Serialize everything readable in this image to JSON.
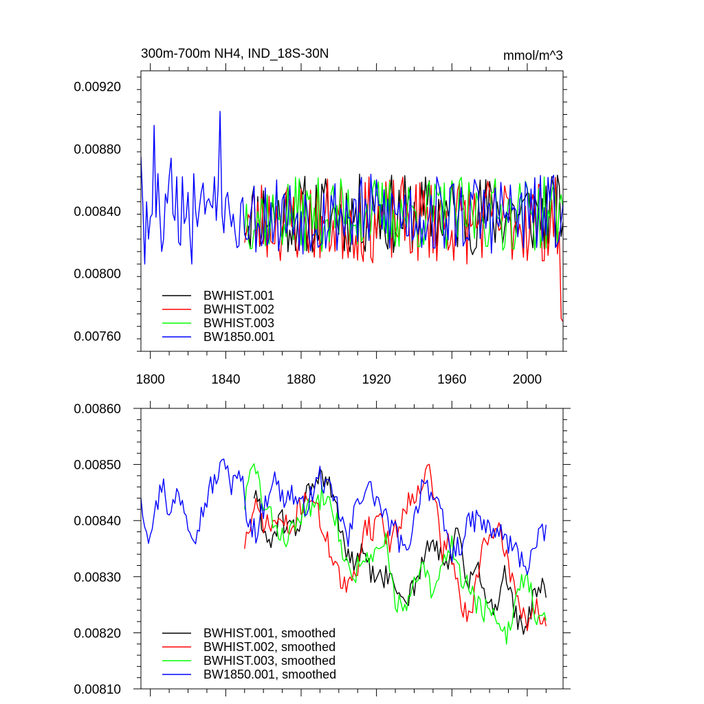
{
  "chart_data": [
    {
      "type": "line",
      "title": "300m-700m NH4, IND_18S-30N",
      "units_label": "mmol/m^3",
      "xlabel": "",
      "ylabel": "",
      "xlim": [
        1795,
        2019
      ],
      "ylim": [
        0.0075,
        0.0093
      ],
      "xticks": [
        1800,
        1840,
        1880,
        1920,
        1960,
        2000
      ],
      "xtick_labels": [
        "1800",
        "1840",
        "1880",
        "1920",
        "1960",
        "2000"
      ],
      "yticks": [
        0.0076,
        0.008,
        0.0084,
        0.0088,
        0.0092
      ],
      "ytick_labels": [
        "0.00760",
        "0.00800",
        "0.00840",
        "0.00880",
        "0.00920"
      ],
      "grid": false,
      "legend_position": "bottom-left",
      "series": [
        {
          "name": "BWHIST.001",
          "color": "#000000",
          "x_start": 1850,
          "x_step": 1,
          "synth_seed": 11,
          "synth_mean": 0.00838,
          "synth_amp": 0.00026
        },
        {
          "name": "BWHIST.002",
          "color": "#ff0000",
          "x_start": 1850,
          "x_step": 1,
          "synth_seed": 23,
          "synth_mean": 0.00834,
          "synth_amp": 0.00028,
          "end_values": [
            0.00771,
            0.00769
          ]
        },
        {
          "name": "BWHIST.003",
          "color": "#00ff00",
          "x_start": 1850,
          "x_step": 1,
          "synth_seed": 37,
          "synth_mean": 0.00838,
          "synth_amp": 0.00024
        },
        {
          "name": "BW1850.001",
          "color": "#0000ff",
          "x_start": 1795,
          "x_step": 1,
          "head_values": [
            0.00875,
            0.00845,
            0.00806,
            0.00846,
            0.00822,
            0.00836,
            0.00838,
            0.00895,
            0.00836,
            0.00864,
            0.00838,
            0.00814,
            0.00822,
            0.00851,
            0.00845,
            0.00862,
            0.00874,
            0.00838,
            0.00834,
            0.00862,
            0.0082,
            0.00818,
            0.00862,
            0.00832,
            0.00836,
            0.00852,
            0.00824,
            0.00806,
            0.00864,
            0.0084,
            0.0083,
            0.00842,
            0.00852,
            0.00858,
            0.00838,
            0.00846,
            0.00848,
            0.00844,
            0.00842,
            0.00862,
            0.00834,
            0.00856,
            0.00904,
            0.00838,
            0.00826,
            0.00848,
            0.00852,
            0.0084,
            0.0083,
            0.00838
          ],
          "synth_seed": 53,
          "synth_mean": 0.00838,
          "synth_amp": 0.00026,
          "end_values": [
            0.00822,
            0.00834,
            0.00845
          ]
        }
      ]
    },
    {
      "type": "line",
      "title": "",
      "xlabel": "",
      "ylabel": "",
      "xlim": [
        1795,
        2019
      ],
      "ylim": [
        0.0081,
        0.0086
      ],
      "xticks": [
        1800,
        1840,
        1880,
        1920,
        1960,
        2000
      ],
      "xtick_labels": [
        "",
        "",
        "",
        "",
        "",
        ""
      ],
      "yticks": [
        0.0081,
        0.0082,
        0.0083,
        0.0084,
        0.0085,
        0.0086
      ],
      "ytick_labels": [
        "0.00810",
        "0.00820",
        "0.00830",
        "0.00840",
        "0.00850",
        "0.00860"
      ],
      "grid": false,
      "legend_position": "bottom-left",
      "series": [
        {
          "name": "BWHIST.001, smoothed",
          "color": "#000000",
          "x_start": 1855,
          "x_step": 1,
          "anchors": [
            [
              1855,
              0.00845
            ],
            [
              1858,
              0.00842
            ],
            [
              1862,
              0.00836
            ],
            [
              1870,
              0.0084
            ],
            [
              1878,
              0.00838
            ],
            [
              1882,
              0.00844
            ],
            [
              1888,
              0.00848
            ],
            [
              1895,
              0.00846
            ],
            [
              1900,
              0.0084
            ],
            [
              1906,
              0.00832
            ],
            [
              1912,
              0.00834
            ],
            [
              1918,
              0.0083
            ],
            [
              1925,
              0.0083
            ],
            [
              1930,
              0.00828
            ],
            [
              1936,
              0.00826
            ],
            [
              1942,
              0.0083
            ],
            [
              1948,
              0.00836
            ],
            [
              1953,
              0.00834
            ],
            [
              1958,
              0.00832
            ],
            [
              1963,
              0.00838
            ],
            [
              1968,
              0.00828
            ],
            [
              1973,
              0.00832
            ],
            [
              1978,
              0.00826
            ],
            [
              1983,
              0.00824
            ],
            [
              1988,
              0.00832
            ],
            [
              1993,
              0.00824
            ],
            [
              1998,
              0.00819
            ],
            [
              2003,
              0.00826
            ],
            [
              2008,
              0.00828
            ],
            [
              2010,
              0.00826
            ]
          ],
          "synth_seed": 61,
          "synth_amp": 2.2e-05
        },
        {
          "name": "BWHIST.002, smoothed",
          "color": "#ff0000",
          "x_start": 1850,
          "x_step": 1,
          "anchors": [
            [
              1850,
              0.00836
            ],
            [
              1856,
              0.00842
            ],
            [
              1862,
              0.00839
            ],
            [
              1868,
              0.0084
            ],
            [
              1875,
              0.00838
            ],
            [
              1880,
              0.00843
            ],
            [
              1885,
              0.00845
            ],
            [
              1890,
              0.0084
            ],
            [
              1894,
              0.00836
            ],
            [
              1898,
              0.00833
            ],
            [
              1902,
              0.00828
            ],
            [
              1906,
              0.00828
            ],
            [
              1910,
              0.00832
            ],
            [
              1914,
              0.0084
            ],
            [
              1918,
              0.00838
            ],
            [
              1922,
              0.00842
            ],
            [
              1926,
              0.00836
            ],
            [
              1930,
              0.00838
            ],
            [
              1935,
              0.00842
            ],
            [
              1940,
              0.00845
            ],
            [
              1944,
              0.00847
            ],
            [
              1948,
              0.00849
            ],
            [
              1952,
              0.00842
            ],
            [
              1955,
              0.00834
            ],
            [
              1958,
              0.00836
            ],
            [
              1962,
              0.0083
            ],
            [
              1966,
              0.00824
            ],
            [
              1970,
              0.00822
            ],
            [
              1974,
              0.00832
            ],
            [
              1978,
              0.00838
            ],
            [
              1982,
              0.00836
            ],
            [
              1986,
              0.00838
            ],
            [
              1990,
              0.00832
            ],
            [
              1995,
              0.00826
            ],
            [
              2000,
              0.00822
            ],
            [
              2005,
              0.00825
            ],
            [
              2010,
              0.0082
            ]
          ],
          "synth_seed": 71,
          "synth_amp": 2.2e-05
        },
        {
          "name": "BWHIST.003, smoothed",
          "color": "#00ff00",
          "x_start": 1850,
          "x_step": 1,
          "anchors": [
            [
              1850,
              0.00843
            ],
            [
              1853,
              0.00848
            ],
            [
              1856,
              0.0085
            ],
            [
              1860,
              0.00842
            ],
            [
              1865,
              0.0084
            ],
            [
              1870,
              0.00837
            ],
            [
              1875,
              0.00838
            ],
            [
              1880,
              0.00841
            ],
            [
              1885,
              0.00842
            ],
            [
              1890,
              0.00844
            ],
            [
              1895,
              0.00846
            ],
            [
              1900,
              0.00838
            ],
            [
              1904,
              0.00832
            ],
            [
              1908,
              0.0083
            ],
            [
              1912,
              0.00834
            ],
            [
              1916,
              0.00832
            ],
            [
              1920,
              0.00834
            ],
            [
              1925,
              0.00836
            ],
            [
              1930,
              0.00826
            ],
            [
              1935,
              0.00824
            ],
            [
              1940,
              0.00828
            ],
            [
              1945,
              0.00832
            ],
            [
              1950,
              0.00826
            ],
            [
              1955,
              0.00832
            ],
            [
              1960,
              0.00836
            ],
            [
              1965,
              0.0083
            ],
            [
              1970,
              0.00828
            ],
            [
              1975,
              0.00824
            ],
            [
              1980,
              0.00824
            ],
            [
              1985,
              0.0082
            ],
            [
              1990,
              0.0082
            ],
            [
              1995,
              0.00828
            ],
            [
              2000,
              0.00831
            ],
            [
              2005,
              0.00822
            ],
            [
              2010,
              0.00822
            ]
          ],
          "synth_seed": 83,
          "synth_amp": 2.2e-05
        },
        {
          "name": "BW1850.001, smoothed",
          "color": "#0000ff",
          "x_start": 1795,
          "x_step": 1,
          "anchors": [
            [
              1795,
              0.00845
            ],
            [
              1797,
              0.0084
            ],
            [
              1799,
              0.00838
            ],
            [
              1803,
              0.00842
            ],
            [
              1807,
              0.00848
            ],
            [
              1810,
              0.0084
            ],
            [
              1814,
              0.00845
            ],
            [
              1817,
              0.00844
            ],
            [
              1820,
              0.0084
            ],
            [
              1824,
              0.00838
            ],
            [
              1828,
              0.00842
            ],
            [
              1832,
              0.00846
            ],
            [
              1836,
              0.00848
            ],
            [
              1840,
              0.00851
            ],
            [
              1843,
              0.00846
            ],
            [
              1848,
              0.00848
            ],
            [
              1852,
              0.0084
            ],
            [
              1856,
              0.00838
            ],
            [
              1860,
              0.00842
            ],
            [
              1865,
              0.00848
            ],
            [
              1870,
              0.00844
            ],
            [
              1875,
              0.00845
            ],
            [
              1880,
              0.00842
            ],
            [
              1885,
              0.00844
            ],
            [
              1890,
              0.00848
            ],
            [
              1895,
              0.00845
            ],
            [
              1900,
              0.00842
            ],
            [
              1905,
              0.00836
            ],
            [
              1910,
              0.00844
            ],
            [
              1915,
              0.00846
            ],
            [
              1920,
              0.00844
            ],
            [
              1925,
              0.0084
            ],
            [
              1930,
              0.00838
            ],
            [
              1935,
              0.00834
            ],
            [
              1940,
              0.0084
            ],
            [
              1945,
              0.00848
            ],
            [
              1950,
              0.00844
            ],
            [
              1955,
              0.0084
            ],
            [
              1960,
              0.00834
            ],
            [
              1965,
              0.00836
            ],
            [
              1970,
              0.0084
            ],
            [
              1975,
              0.0084
            ],
            [
              1980,
              0.00838
            ],
            [
              1985,
              0.00838
            ],
            [
              1990,
              0.00836
            ],
            [
              1995,
              0.00834
            ],
            [
              2000,
              0.00832
            ],
            [
              2005,
              0.00836
            ],
            [
              2010,
              0.00838
            ]
          ],
          "synth_seed": 97,
          "synth_amp": 2.2e-05
        }
      ]
    }
  ]
}
